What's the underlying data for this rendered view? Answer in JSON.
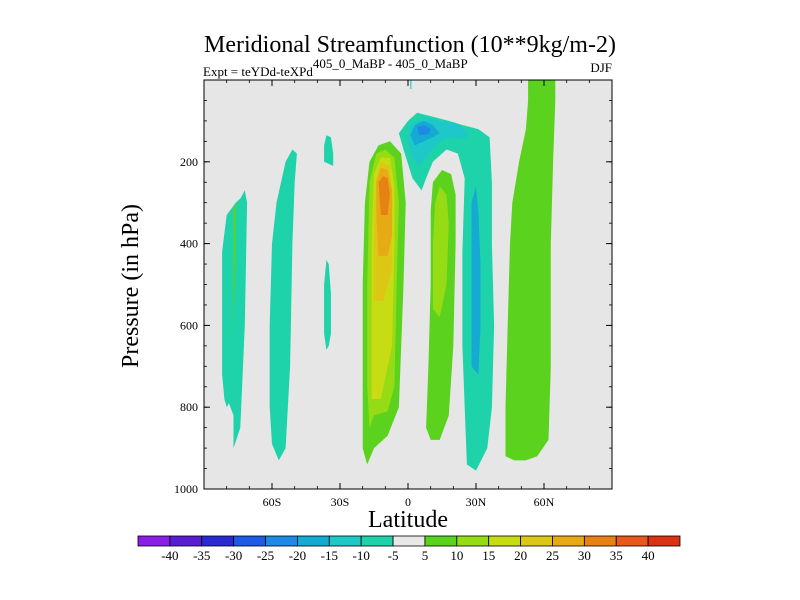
{
  "chart_data": {
    "type": "contour",
    "title": "Meridional Streamfunction (10**9kg/m-2)",
    "subtitle_left_prefix": "Expt = teYDd-teXPd",
    "subtitle_superscript": "405_0_MaBP - 405_0_MaBP",
    "season": "DJF",
    "xlabel": "Latitude",
    "ylabel": "Pressure (in hPa)",
    "xlim": [
      -90,
      90
    ],
    "ylim": [
      1000,
      0
    ],
    "xticks": [
      {
        "value": -60,
        "label": "60S"
      },
      {
        "value": -30,
        "label": "30S"
      },
      {
        "value": 0,
        "label": "0"
      },
      {
        "value": 30,
        "label": "30N"
      },
      {
        "value": 60,
        "label": "60N"
      }
    ],
    "yticks": [
      {
        "value": 200,
        "label": "200"
      },
      {
        "value": 400,
        "label": "400"
      },
      {
        "value": 600,
        "label": "600"
      },
      {
        "value": 800,
        "label": "800"
      },
      {
        "value": 1000,
        "label": "1000"
      }
    ],
    "colorbar": {
      "labels": [
        "-40",
        "-35",
        "-30",
        "-25",
        "-20",
        "-15",
        "-10",
        "-5",
        "5",
        "10",
        "15",
        "20",
        "25",
        "30",
        "35",
        "40"
      ],
      "colors": [
        "#8a1ee6",
        "#5a1ed2",
        "#2a2ad2",
        "#1e5ae6",
        "#1e8ae6",
        "#14aad2",
        "#1ec8c8",
        "#1ed2aa",
        "#e8e8e8",
        "#5ad21e",
        "#96dc14",
        "#c8dc14",
        "#dcc814",
        "#e6aa14",
        "#e68214",
        "#e6581e",
        "#dc3214"
      ]
    },
    "contour_regions": [
      {
        "level": "-10..-5",
        "color": "#1ed2aa",
        "polygon": [
          [
            -77,
            900
          ],
          [
            -74,
            850
          ],
          [
            -72,
            600
          ],
          [
            -71,
            300
          ],
          [
            -72,
            270
          ],
          [
            -74,
            290
          ],
          [
            -76,
            300
          ],
          [
            -80,
            330
          ],
          [
            -82,
            420
          ],
          [
            -82,
            720
          ],
          [
            -81,
            780
          ],
          [
            -80,
            800
          ],
          [
            -79,
            790
          ],
          [
            -77,
            820
          ]
        ]
      },
      {
        "level": "5..10",
        "color": "#5ad21e",
        "polygon": [
          [
            -77,
            775
          ],
          [
            -77,
            630
          ],
          [
            -76,
            400
          ],
          [
            -76,
            310
          ],
          [
            -75,
            300
          ],
          [
            -77,
            310
          ],
          [
            -77,
            630
          ],
          [
            -77,
            775
          ]
        ]
      },
      {
        "level": "-10..-5",
        "color": "#1ed2aa",
        "polygon": [
          [
            -57,
            930
          ],
          [
            -54,
            900
          ],
          [
            -52,
            700
          ],
          [
            -51,
            400
          ],
          [
            -50,
            250
          ],
          [
            -49,
            180
          ],
          [
            -51,
            170
          ],
          [
            -54,
            200
          ],
          [
            -58,
            300
          ],
          [
            -60,
            400
          ],
          [
            -61,
            600
          ],
          [
            -61,
            800
          ],
          [
            -60,
            890
          ]
        ]
      },
      {
        "level": "-10..-5",
        "color": "#1ed2aa",
        "polygon": [
          [
            -33,
            210
          ],
          [
            -33,
            180
          ],
          [
            -34,
            140
          ],
          [
            -36,
            135
          ],
          [
            -37,
            160
          ],
          [
            -37,
            200
          ]
        ]
      },
      {
        "level": "-10..-5",
        "color": "#1ed2aa",
        "polygon": [
          [
            -34,
            620
          ],
          [
            -34,
            520
          ],
          [
            -35,
            450
          ],
          [
            -36,
            440
          ],
          [
            -37,
            500
          ],
          [
            -37,
            620
          ],
          [
            -36,
            660
          ],
          [
            -35,
            650
          ]
        ]
      },
      {
        "level": "5..10",
        "color": "#5ad21e",
        "polygon": [
          [
            -18,
            940
          ],
          [
            -15,
            900
          ],
          [
            -9,
            870
          ],
          [
            -4,
            800
          ],
          [
            -2,
            500
          ],
          [
            -1,
            300
          ],
          [
            -3,
            180
          ],
          [
            -8,
            150
          ],
          [
            -13,
            160
          ],
          [
            -17,
            200
          ],
          [
            -19,
            300
          ],
          [
            -20,
            500
          ],
          [
            -20,
            800
          ],
          [
            -20,
            900
          ]
        ]
      },
      {
        "level": "10..15",
        "color": "#96dc14",
        "polygon": [
          [
            -17,
            850
          ],
          [
            -15,
            820
          ],
          [
            -9,
            810
          ],
          [
            -6,
            750
          ],
          [
            -5,
            500
          ],
          [
            -4,
            300
          ],
          [
            -6,
            190
          ],
          [
            -10,
            170
          ],
          [
            -14,
            180
          ],
          [
            -17,
            250
          ],
          [
            -18,
            500
          ],
          [
            -18,
            750
          ]
        ]
      },
      {
        "level": "15..20",
        "color": "#c8dc14",
        "polygon": [
          [
            -16,
            780
          ],
          [
            -12,
            780
          ],
          [
            -7,
            650
          ],
          [
            -6,
            400
          ],
          [
            -6,
            260
          ],
          [
            -8,
            190
          ],
          [
            -12,
            190
          ],
          [
            -15,
            230
          ],
          [
            -16,
            400
          ],
          [
            -16,
            650
          ]
        ]
      },
      {
        "level": "20..25",
        "color": "#dcc814",
        "polygon": [
          [
            -15,
            540
          ],
          [
            -11,
            540
          ],
          [
            -7,
            460
          ],
          [
            -7,
            300
          ],
          [
            -8,
            210
          ],
          [
            -12,
            200
          ],
          [
            -14,
            240
          ],
          [
            -15,
            350
          ]
        ]
      },
      {
        "level": "25..30",
        "color": "#e6aa14",
        "polygon": [
          [
            -13,
            430
          ],
          [
            -9,
            430
          ],
          [
            -7,
            380
          ],
          [
            -7,
            270
          ],
          [
            -9,
            220
          ],
          [
            -12,
            215
          ],
          [
            -14,
            250
          ],
          [
            -14,
            330
          ]
        ]
      },
      {
        "level": "30..35",
        "color": "#e68214",
        "polygon": [
          [
            -12,
            330
          ],
          [
            -9,
            330
          ],
          [
            -8,
            280
          ],
          [
            -9,
            240
          ],
          [
            -11,
            235
          ],
          [
            -13,
            250
          ]
        ]
      },
      {
        "level": "-10..-5",
        "color": "#1ed2aa",
        "polygon": [
          [
            6,
            270
          ],
          [
            8,
            240
          ],
          [
            11,
            200
          ],
          [
            17,
            170
          ],
          [
            22,
            180
          ],
          [
            25,
            240
          ],
          [
            24,
            420
          ],
          [
            24,
            650
          ],
          [
            25,
            800
          ],
          [
            26,
            940
          ],
          [
            30,
            955
          ],
          [
            35,
            900
          ],
          [
            37,
            800
          ],
          [
            38,
            600
          ],
          [
            37,
            400
          ],
          [
            37,
            250
          ],
          [
            36,
            140
          ],
          [
            31,
            120
          ],
          [
            24,
            110
          ],
          [
            18,
            100
          ],
          [
            11,
            90
          ],
          [
            4,
            80
          ],
          [
            0,
            100
          ],
          [
            -4,
            130
          ],
          [
            -2,
            170
          ],
          [
            2,
            240
          ]
        ]
      },
      {
        "level": "-15..-10",
        "color": "#1ec8c8",
        "polygon": [
          [
            5,
            210
          ],
          [
            9,
            180
          ],
          [
            14,
            150
          ],
          [
            20,
            140
          ],
          [
            25,
            145
          ],
          [
            27,
            130
          ],
          [
            21,
            105
          ],
          [
            14,
            100
          ],
          [
            8,
            92
          ],
          [
            1,
            110
          ],
          [
            0,
            150
          ],
          [
            2,
            190
          ]
        ]
      },
      {
        "level": "-20..-15",
        "color": "#14aad2",
        "polygon": [
          [
            3,
            160
          ],
          [
            7,
            150
          ],
          [
            11,
            140
          ],
          [
            14,
            130
          ],
          [
            11,
            110
          ],
          [
            7,
            100
          ],
          [
            3,
            110
          ],
          [
            1,
            135
          ]
        ]
      },
      {
        "level": "-25..-20",
        "color": "#1e8ae6",
        "polygon": [
          [
            5,
            135
          ],
          [
            9,
            132
          ],
          [
            10,
            120
          ],
          [
            7,
            110
          ],
          [
            4,
            115
          ]
        ]
      },
      {
        "level": "-15..-10",
        "color": "#14aad2",
        "polygon": [
          [
            28,
            700
          ],
          [
            31,
            720
          ],
          [
            32,
            600
          ],
          [
            32,
            450
          ],
          [
            31,
            320
          ],
          [
            30,
            260
          ],
          [
            28,
            300
          ],
          [
            28,
            500
          ]
        ]
      },
      {
        "level": "0..5",
        "color": "#5ad21e",
        "polygon": [
          [
            8,
            850
          ],
          [
            10,
            880
          ],
          [
            14,
            880
          ],
          [
            18,
            820
          ],
          [
            20,
            650
          ],
          [
            21,
            400
          ],
          [
            21,
            280
          ],
          [
            19,
            230
          ],
          [
            15,
            220
          ],
          [
            11,
            250
          ],
          [
            10,
            320
          ],
          [
            10,
            500
          ],
          [
            9,
            700
          ]
        ]
      },
      {
        "level": "5..10",
        "color": "#96dc14",
        "polygon": [
          [
            11,
            560
          ],
          [
            14,
            580
          ],
          [
            17,
            500
          ],
          [
            18,
            350
          ],
          [
            17,
            280
          ],
          [
            14,
            260
          ],
          [
            12,
            300
          ],
          [
            11,
            400
          ]
        ]
      },
      {
        "level": "5..10",
        "color": "#5ad21e",
        "polygon": [
          [
            43,
            920
          ],
          [
            47,
            930
          ],
          [
            52,
            930
          ],
          [
            57,
            920
          ],
          [
            62,
            880
          ],
          [
            63,
            700
          ],
          [
            63,
            400
          ],
          [
            64,
            200
          ],
          [
            65,
            50
          ],
          [
            65,
            0
          ],
          [
            53,
            0
          ],
          [
            53,
            50
          ],
          [
            52,
            120
          ],
          [
            49,
            200
          ],
          [
            46,
            300
          ],
          [
            45,
            400
          ],
          [
            44,
            600
          ],
          [
            43,
            800
          ]
        ]
      },
      {
        "level": "-5..5",
        "color": "#1ec8c8",
        "polygon": [
          [
            1,
            22
          ],
          [
            1.5,
            22
          ],
          [
            1.5,
            0
          ],
          [
            1,
            0
          ]
        ]
      }
    ]
  }
}
